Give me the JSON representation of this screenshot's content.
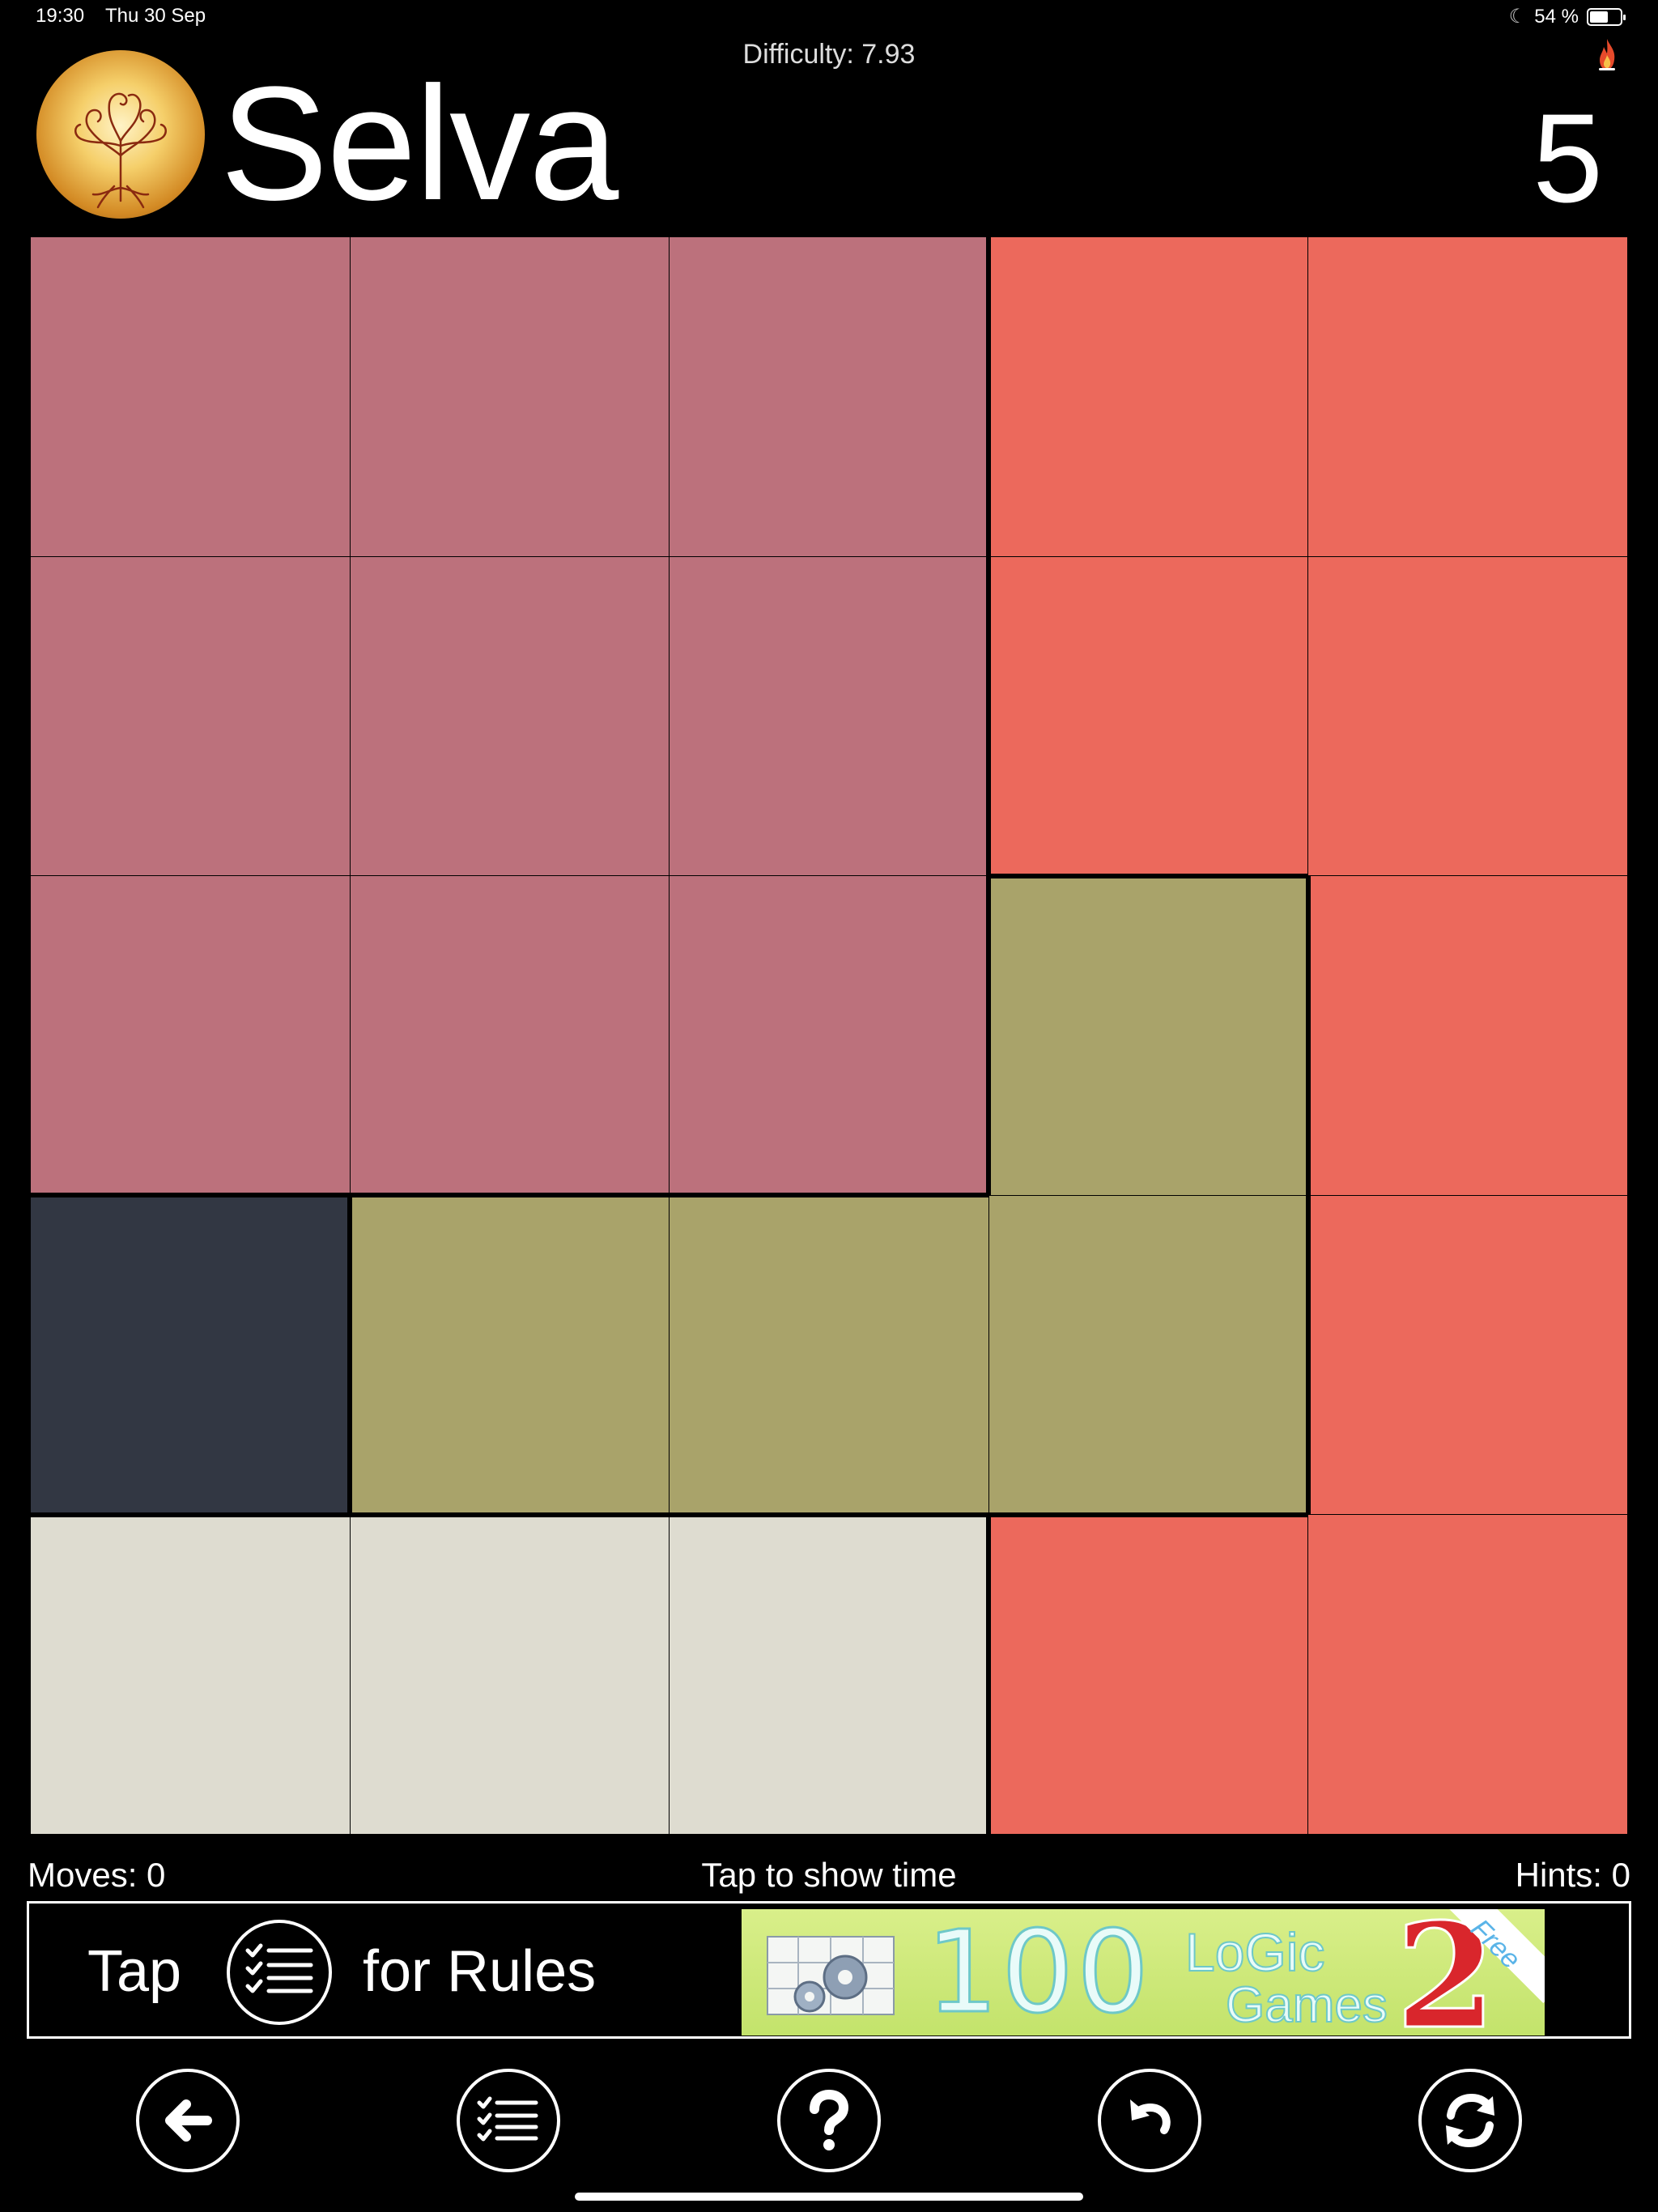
{
  "status_bar": {
    "time": "19:30",
    "date": "Thu 30 Sep",
    "battery_text": "54 %",
    "battery_level": 0.54
  },
  "header": {
    "difficulty": "Difficulty: 7.93",
    "title": "Selva",
    "level": "5",
    "logo_icon": "tree-of-life-icon",
    "flame_icon": "flame-icon"
  },
  "board": {
    "rows": 5,
    "cols": 5,
    "colors": {
      "mauve": "#bc717c",
      "coral": "#ec695c",
      "olive": "#a9a36a",
      "slate": "#323743",
      "cream": "#dedcd0"
    },
    "cells": [
      [
        "mauve",
        "mauve",
        "mauve",
        "coral",
        "coral"
      ],
      [
        "mauve",
        "mauve",
        "mauve",
        "coral",
        "coral"
      ],
      [
        "mauve",
        "mauve",
        "mauve",
        "olive",
        "coral"
      ],
      [
        "slate",
        "olive",
        "olive",
        "olive",
        "coral"
      ],
      [
        "cream",
        "cream",
        "cream",
        "coral",
        "coral"
      ]
    ]
  },
  "info": {
    "moves": "Moves: 0",
    "time_toggle": "Tap to show time",
    "hints": "Hints: 0"
  },
  "rules_banner": {
    "tap": "Tap",
    "for_rules": "for Rules",
    "icon": "checklist-icon",
    "ad": {
      "number": "100",
      "logic": "LoGic",
      "games": "Games",
      "edition": "2",
      "free": "Free"
    }
  },
  "toolbar": [
    {
      "name": "back-button",
      "icon": "arrow-left-icon"
    },
    {
      "name": "rules-button",
      "icon": "checklist-icon"
    },
    {
      "name": "help-button",
      "icon": "question-icon"
    },
    {
      "name": "undo-button",
      "icon": "undo-icon"
    },
    {
      "name": "restart-button",
      "icon": "refresh-icon"
    }
  ]
}
